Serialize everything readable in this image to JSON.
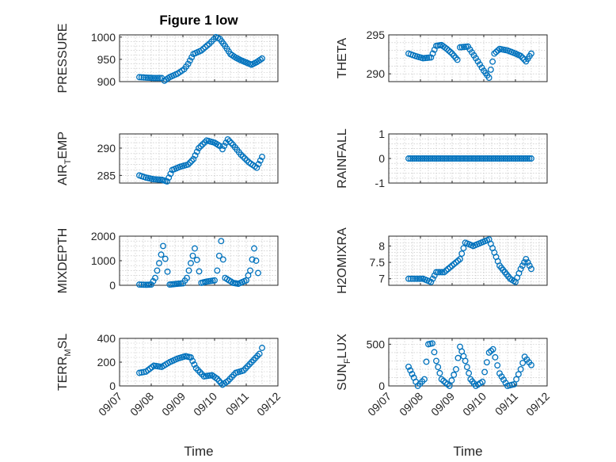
{
  "figure": {
    "title": "Figure 1 low",
    "marker_color": "#0072bd",
    "grid": true,
    "date_ticks": [
      "09/07",
      "09/08",
      "09/09",
      "09/10",
      "09/11",
      "09/12"
    ],
    "time_label": "Time"
  },
  "chart_data": [
    {
      "type": "scatter",
      "ylabel": "PRESSURE",
      "xlim": [
        "2023-09-07",
        "2023-09-12"
      ],
      "ylim": [
        900,
        1005
      ],
      "yticks": [
        900,
        950,
        1000
      ],
      "grid": true,
      "x": [
        "2023-09-07T15:00",
        "2023-09-07T20:00",
        "2023-09-08T02:00",
        "2023-09-08T08:00",
        "2023-09-08T10:00",
        "2023-09-08T14:00",
        "2023-09-08T20:00",
        "2023-09-09T01:00",
        "2023-09-09T04:00",
        "2023-09-09T08:00",
        "2023-09-09T14:00",
        "2023-09-09T20:00",
        "2023-09-10T01:00",
        "2023-09-10T04:00",
        "2023-09-10T08:00",
        "2023-09-10T12:00",
        "2023-09-10T16:00",
        "2023-09-10T20:00",
        "2023-09-11T00:00",
        "2023-09-11T04:00",
        "2023-09-11T08:00",
        "2023-09-11T12:00"
      ],
      "y": [
        910,
        909,
        908,
        908,
        902,
        910,
        918,
        928,
        940,
        962,
        970,
        985,
        1000,
        996,
        980,
        962,
        954,
        948,
        943,
        938,
        944,
        952
      ]
    },
    {
      "type": "scatter",
      "ylabel": "THETA",
      "xlim": [
        "2023-09-07",
        "2023-09-12"
      ],
      "ylim": [
        289,
        295
      ],
      "yticks": [
        290,
        295
      ],
      "grid": true,
      "x": [
        "2023-09-07T15:00",
        "2023-09-07T20:00",
        "2023-09-08T02:00",
        "2023-09-08T08:00",
        "2023-09-08T12:00",
        "2023-09-08T16:00",
        "2023-09-08T20:00",
        "2023-09-09T00:00",
        "2023-09-09T04:00",
        "2023-09-09T06:00",
        "2023-09-09T12:00",
        "2023-09-09T18:00",
        "2023-09-10T00:00",
        "2023-09-10T04:00",
        "2023-09-10T08:00",
        "2023-09-10T12:00",
        "2023-09-10T18:00",
        "2023-09-11T00:00",
        "2023-09-11T04:00",
        "2023-09-11T08:00",
        "2023-09-11T12:00"
      ],
      "y": [
        292.6,
        292.3,
        292.0,
        292.1,
        293.6,
        293.7,
        293.2,
        292.6,
        291.8,
        293.4,
        293.5,
        292.0,
        290.4,
        289.5,
        292.6,
        293.2,
        293.0,
        292.6,
        292.3,
        291.6,
        292.6
      ]
    },
    {
      "type": "scatter",
      "ylabel": "AIR",
      "ylabel_sub": "T",
      "ylabel_rest": "EMP",
      "xlim": [
        "2023-09-07",
        "2023-09-12"
      ],
      "ylim": [
        283.6,
        292.6
      ],
      "yticks": [
        285,
        290
      ],
      "grid": true,
      "x": [
        "2023-09-07T15:00",
        "2023-09-07T20:00",
        "2023-09-08T02:00",
        "2023-09-08T08:00",
        "2023-09-08T12:00",
        "2023-09-08T16:00",
        "2023-09-08T22:00",
        "2023-09-09T04:00",
        "2023-09-09T08:00",
        "2023-09-09T12:00",
        "2023-09-09T18:00",
        "2023-09-10T00:00",
        "2023-09-10T04:00",
        "2023-09-10T06:00",
        "2023-09-10T10:00",
        "2023-09-10T14:00",
        "2023-09-10T20:00",
        "2023-09-11T02:00",
        "2023-09-11T08:00",
        "2023-09-11T12:00"
      ],
      "y": [
        285.0,
        284.6,
        284.3,
        284.2,
        283.9,
        286.0,
        286.6,
        287.0,
        288.0,
        290.0,
        291.4,
        291.0,
        290.4,
        289.8,
        291.6,
        290.6,
        288.8,
        287.4,
        286.4,
        288.4
      ]
    },
    {
      "type": "scatter",
      "ylabel": "RAINFALL",
      "xlim": [
        "2023-09-07",
        "2023-09-12"
      ],
      "ylim": [
        -1,
        1
      ],
      "yticks": [
        -1,
        0,
        1
      ],
      "grid": true,
      "x": [
        "2023-09-07T15:00",
        "2023-09-08T00:00",
        "2023-09-08T12:00",
        "2023-09-09T00:00",
        "2023-09-09T12:00",
        "2023-09-10T00:00",
        "2023-09-10T12:00",
        "2023-09-11T00:00",
        "2023-09-11T12:00"
      ],
      "y": [
        0,
        0,
        0,
        0,
        0,
        0,
        0,
        0,
        0
      ]
    },
    {
      "type": "scatter",
      "ylabel": "MIXDEPTH",
      "xlim": [
        "2023-09-07",
        "2023-09-12"
      ],
      "ylim": [
        0,
        2000
      ],
      "yticks": [
        0,
        1000,
        2000
      ],
      "grid": true,
      "x": [
        "2023-09-07T15:00",
        "2023-09-07T20:00",
        "2023-09-08T00:00",
        "2023-09-08T03:00",
        "2023-09-08T06:00",
        "2023-09-08T09:00",
        "2023-09-08T14:00",
        "2023-09-08T18:00",
        "2023-09-09T00:00",
        "2023-09-09T03:00",
        "2023-09-09T06:00",
        "2023-09-09T09:00",
        "2023-09-09T14:00",
        "2023-09-09T18:00",
        "2023-09-10T00:00",
        "2023-09-10T02:00",
        "2023-09-10T05:00",
        "2023-09-10T08:00",
        "2023-09-10T14:00",
        "2023-09-10T18:00",
        "2023-09-11T00:00",
        "2023-09-11T03:00",
        "2023-09-11T06:00",
        "2023-09-11T09:00"
      ],
      "y": [
        30,
        20,
        30,
        300,
        900,
        1600,
        30,
        50,
        80,
        300,
        900,
        1500,
        100,
        150,
        200,
        600,
        1800,
        300,
        100,
        60,
        200,
        600,
        1500,
        500
      ]
    },
    {
      "type": "scatter",
      "ylabel": "H2OMIXRA",
      "xlim": [
        "2023-09-07",
        "2023-09-12"
      ],
      "ylim": [
        6.8,
        8.3
      ],
      "yticks": [
        7,
        7.5,
        8
      ],
      "grid": true,
      "x": [
        "2023-09-07T15:00",
        "2023-09-07T20:00",
        "2023-09-08T02:00",
        "2023-09-08T08:00",
        "2023-09-08T12:00",
        "2023-09-08T18:00",
        "2023-09-09T00:00",
        "2023-09-09T06:00",
        "2023-09-09T10:00",
        "2023-09-09T16:00",
        "2023-09-09T22:00",
        "2023-09-10T04:00",
        "2023-09-10T08:00",
        "2023-09-10T12:00",
        "2023-09-10T16:00",
        "2023-09-10T20:00",
        "2023-09-11T00:00",
        "2023-09-11T04:00",
        "2023-09-11T08:00",
        "2023-09-11T12:00"
      ],
      "y": [
        7.0,
        7.0,
        7.0,
        6.9,
        7.2,
        7.2,
        7.4,
        7.6,
        8.1,
        8.0,
        8.1,
        8.2,
        7.8,
        7.4,
        7.2,
        7.0,
        6.9,
        7.3,
        7.6,
        7.3
      ]
    },
    {
      "type": "scatter",
      "ylabel": "TERR",
      "ylabel_sub": "M",
      "ylabel_rest": "SL",
      "xlim": [
        "2023-09-07",
        "2023-09-12"
      ],
      "ylim": [
        0,
        400
      ],
      "yticks": [
        0,
        200,
        400
      ],
      "grid": true,
      "x": [
        "2023-09-07T15:00",
        "2023-09-07T20:00",
        "2023-09-08T02:00",
        "2023-09-08T08:00",
        "2023-09-08T14:00",
        "2023-09-08T20:00",
        "2023-09-09T02:00",
        "2023-09-09T06:00",
        "2023-09-09T10:00",
        "2023-09-09T16:00",
        "2023-09-09T22:00",
        "2023-09-10T02:00",
        "2023-09-10T06:00",
        "2023-09-10T10:00",
        "2023-09-10T16:00",
        "2023-09-10T22:00",
        "2023-09-11T04:00",
        "2023-09-11T10:00",
        "2023-09-11T12:00"
      ],
      "y": [
        110,
        120,
        170,
        160,
        200,
        230,
        250,
        240,
        150,
        80,
        90,
        60,
        10,
        40,
        110,
        130,
        200,
        270,
        320
      ]
    },
    {
      "type": "scatter",
      "ylabel": "SUN",
      "ylabel_sub": "F",
      "ylabel_rest": "LUX",
      "xlim": [
        "2023-09-07",
        "2023-09-12"
      ],
      "ylim": [
        0,
        570
      ],
      "yticks": [
        0,
        500
      ],
      "grid": true,
      "x": [
        "2023-09-07T15:00",
        "2023-09-07T19:00",
        "2023-09-07T22:00",
        "2023-09-08T03:00",
        "2023-09-08T06:00",
        "2023-09-08T09:00",
        "2023-09-08T12:00",
        "2023-09-08T16:00",
        "2023-09-08T22:00",
        "2023-09-09T03:00",
        "2023-09-09T06:00",
        "2023-09-09T10:00",
        "2023-09-09T14:00",
        "2023-09-09T18:00",
        "2023-09-09T23:00",
        "2023-09-10T04:00",
        "2023-09-10T07:00",
        "2023-09-10T12:00",
        "2023-09-10T18:00",
        "2023-09-10T23:00",
        "2023-09-11T04:00",
        "2023-09-11T07:00",
        "2023-09-11T12:00"
      ],
      "y": [
        230,
        100,
        0,
        80,
        500,
        510,
        300,
        80,
        0,
        200,
        470,
        300,
        80,
        0,
        50,
        400,
        440,
        150,
        0,
        20,
        200,
        350,
        250
      ]
    }
  ]
}
